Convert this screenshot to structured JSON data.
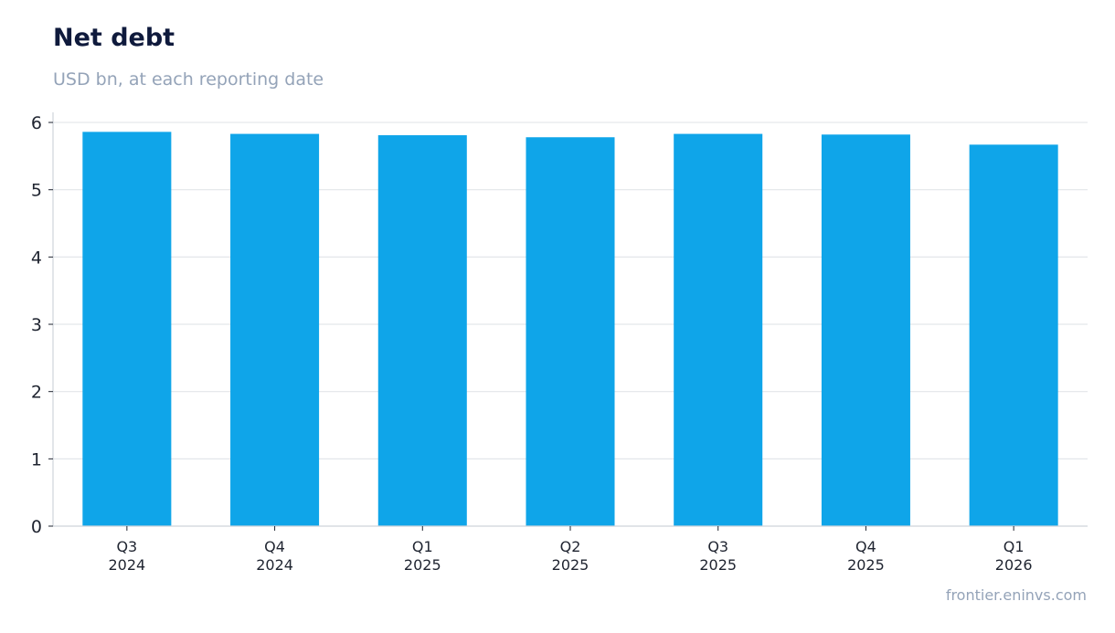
{
  "header": {
    "title": "Net debt",
    "subtitle": "USD bn, at each reporting date"
  },
  "footer": {
    "source": "frontier.eninvs.com"
  },
  "colors": {
    "bar": "#0fa5e9",
    "grid": "#e3e6ea",
    "axis": "#cfd4da",
    "tick_text": "#1f2430"
  },
  "chart_data": {
    "type": "bar",
    "title": "Net debt",
    "subtitle": "USD bn, at each reporting date",
    "xlabel": "",
    "ylabel": "",
    "categories": [
      [
        "Q3",
        "2024"
      ],
      [
        "Q4",
        "2024"
      ],
      [
        "Q1",
        "2025"
      ],
      [
        "Q2",
        "2025"
      ],
      [
        "Q3",
        "2025"
      ],
      [
        "Q4",
        "2025"
      ],
      [
        "Q1",
        "2026"
      ]
    ],
    "values": [
      5.86,
      5.83,
      5.81,
      5.78,
      5.83,
      5.82,
      5.67
    ],
    "ylim": [
      0,
      6.15
    ],
    "yticks": [
      0,
      1,
      2,
      3,
      4,
      5,
      6
    ],
    "grid": true,
    "legend": "none"
  }
}
